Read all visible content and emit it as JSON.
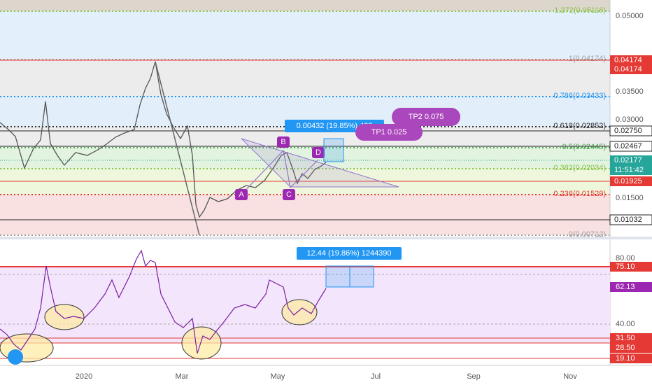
{
  "price_axis": {
    "ticks": [
      "0.05000",
      "0.03500",
      "0.03000",
      "0.01500"
    ],
    "badges": [
      "0.04174",
      "0.04174",
      "0.02750",
      "0.02467",
      "0.02177",
      "11:51:42",
      "0.01925",
      "0.01032"
    ]
  },
  "fib_levels": [
    "1.272(0.05116)",
    "1(0.04174)",
    "0.786(0.03433)",
    "0.618(0.02852)",
    "0.5(0.02445)",
    "0.382(0.02034)",
    "0.236(0.01529)",
    "0(0.00712)"
  ],
  "annotations": {
    "measure": "0.00432 (19.85%) 432",
    "tp2": "TP2 0.075",
    "tp1": "TP1 0.025",
    "points": [
      "A",
      "B",
      "C",
      "D"
    ]
  },
  "rsi": {
    "measure": "12.44 (19.86%) 1244390",
    "ticks": [
      "80.00",
      "40.00"
    ],
    "badges": [
      "75.10",
      "62.13",
      "31.50",
      "28.50",
      "19.10"
    ]
  },
  "time_axis": [
    "2020",
    "Mar",
    "May",
    "Jul",
    "Sep",
    "Nov"
  ]
}
